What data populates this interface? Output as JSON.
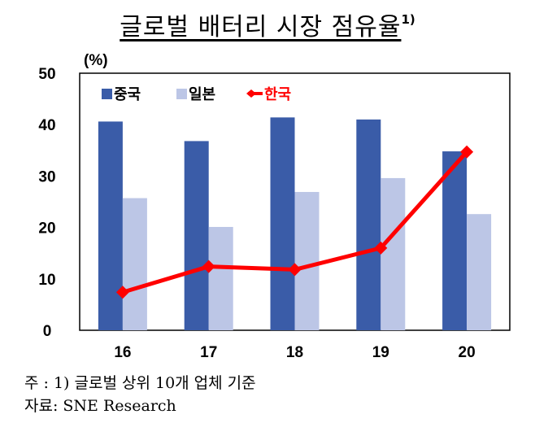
{
  "title": "글로벌 배터리 시장 점유율",
  "title_sup": "1)",
  "notes": {
    "line1": "주 : 1) 글로벌 상위 10개 업체 기준",
    "line2": "자료: SNE Research"
  },
  "chart_data": {
    "type": "bar",
    "categories": [
      "16",
      "17",
      "18",
      "19",
      "20"
    ],
    "unit_label": "(%)",
    "ylim": [
      0,
      50
    ],
    "yticks": [
      0,
      10,
      20,
      30,
      40,
      50
    ],
    "series": [
      {
        "name": "중국",
        "type": "bar",
        "color": "#3a5ca8",
        "values": [
          40.6,
          36.8,
          41.4,
          41.0,
          34.8
        ]
      },
      {
        "name": "일본",
        "type": "bar",
        "color": "#bcc6e6",
        "values": [
          25.7,
          20.1,
          26.9,
          29.6,
          22.6
        ]
      },
      {
        "name": "한국",
        "type": "line",
        "color": "#ff0000",
        "values": [
          7.4,
          12.4,
          11.8,
          16.0,
          34.7
        ]
      }
    ],
    "legend_position": "top-left"
  }
}
